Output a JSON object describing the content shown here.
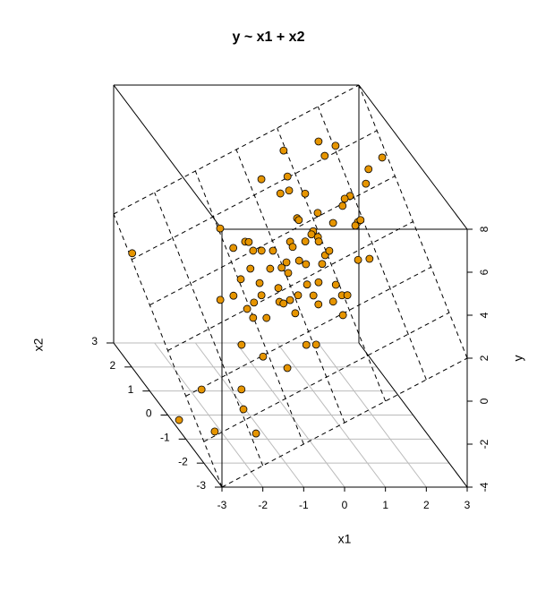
{
  "chart_data": {
    "type": "scatter3d",
    "title": "y ~ x1 + x2",
    "x_label": "x1",
    "x2_label": "x2",
    "y_label": "y",
    "xlim": [
      -3,
      3
    ],
    "xticks": [
      -3,
      -2,
      -1,
      0,
      1,
      2,
      3
    ],
    "x2lim": [
      -3,
      3
    ],
    "x2ticks": [
      -3,
      -2,
      -1,
      0,
      1,
      2,
      3
    ],
    "ylim": [
      -4,
      8
    ],
    "yticks": [
      -4,
      -2,
      0,
      2,
      4,
      6,
      8
    ],
    "color": "#e69500",
    "grid": true,
    "plane": {
      "intercept": 2,
      "x1": 1,
      "x2": 1
    },
    "x1": [
      -2.94,
      -0.96,
      1.73,
      0.95,
      2.04,
      1.74,
      2.89,
      2.52,
      0.27,
      0.82,
      0.54,
      0.74,
      1.04,
      2.35,
      1.93,
      1.8,
      1.7,
      1.37,
      1.14,
      0.68,
      0.7,
      1.88,
      1.95,
      1.8,
      0.9,
      0.84,
      0.95,
      0.93,
      -0.85,
      -0.56,
      -0.49,
      -0.47,
      -0.3,
      -0.07,
      0.35,
      0.36,
      0.66,
      0.95,
      1.07,
      0.82,
      0.49,
      0.38,
      0.11,
      -0.03,
      0.06,
      -0.67,
      -0.27,
      -1.23,
      -1.53,
      -0.95,
      -0.6,
      -0.26,
      0.35,
      0.6,
      0.93,
      0.97,
      1.58,
      1.82,
      1.08,
      -0.12,
      0.08,
      0.39,
      0.42,
      0.74,
      -0.66,
      -0.87,
      -1.06,
      -1.01,
      -0.74,
      -0.35,
      -0.28,
      -0.12,
      0.83,
      -0.15,
      0.05,
      -1.46,
      -1.12,
      -0.72,
      -2.63,
      -1.82,
      -1.94,
      -3.33,
      -2.7,
      -1.88
    ],
    "x2": [
      2.11,
      1.72,
      2.36,
      2.53,
      2.12,
      2.04,
      1.46,
      1.38,
      2.22,
      2.02,
      1.78,
      1.75,
      1.54,
      1.14,
      1.07,
      1.07,
      0.96,
      0.74,
      1.07,
      1.17,
      1.12,
      0.52,
      0.53,
      0.48,
      0.78,
      0.74,
      0.63,
      0.54,
      1.24,
      1.24,
      1.2,
      1.0,
      0.92,
      0.81,
      0.81,
      0.69,
      0.67,
      0.23,
      0.27,
      0.1,
      0.25,
      0.38,
      0.47,
      0.42,
      0.26,
      0.7,
      0.51,
      0.37,
      0.42,
      0.6,
      0.35,
      0.08,
      -0.13,
      -0.2,
      -0.41,
      -0.66,
      -0.17,
      -0.26,
      -0.71,
      -0.25,
      -0.24,
      -0.39,
      -0.6,
      -0.69,
      0.11,
      0.05,
      0.0,
      -0.22,
      -0.35,
      -0.18,
      -0.25,
      -0.54,
      -1.03,
      -1.22,
      -1.31,
      -0.6,
      -1.02,
      -1.46,
      -1.03,
      -1.41,
      -1.79,
      -1.37,
      -1.92,
      -2.35
    ],
    "y": [
      1.17,
      2.76,
      6.09,
      5.48,
      6.16,
      5.78,
      6.35,
      5.9,
      4.49,
      4.84,
      4.32,
      4.49,
      4.58,
      5.49,
      5.0,
      4.87,
      4.66,
      4.11,
      4.21,
      3.85,
      3.82,
      4.4,
      4.48,
      4.28,
      3.68,
      3.58,
      3.58,
      3.47,
      2.39,
      2.68,
      2.71,
      2.53,
      2.62,
      2.74,
      3.16,
      3.05,
      3.33,
      3.18,
      3.34,
      2.92,
      2.74,
      2.76,
      2.58,
      2.39,
      2.32,
      2.03,
      2.24,
      1.14,
      0.89,
      1.65,
      1.75,
      1.82,
      2.22,
      2.4,
      2.52,
      2.31,
      3.41,
      3.56,
      2.37,
      1.63,
      1.84,
      2.0,
      1.82,
      2.05,
      1.45,
      1.18,
      0.94,
      0.77,
      0.91,
      1.47,
      1.47,
      1.34,
      1.8,
      0.63,
      0.74,
      -0.06,
      -0.14,
      -0.18,
      -1.66,
      -1.23,
      -1.73,
      -2.7,
      -2.62,
      -2.23
    ]
  }
}
